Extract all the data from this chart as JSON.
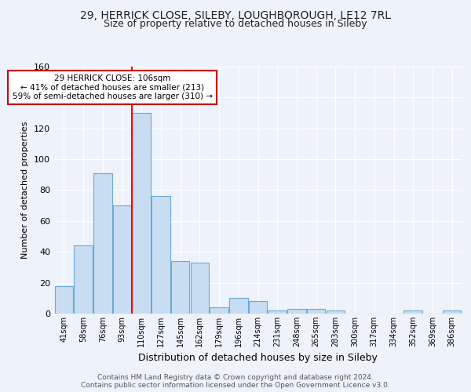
{
  "title1": "29, HERRICK CLOSE, SILEBY, LOUGHBOROUGH, LE12 7RL",
  "title2": "Size of property relative to detached houses in Sileby",
  "xlabel": "Distribution of detached houses by size in Sileby",
  "ylabel": "Number of detached properties",
  "categories": [
    "41sqm",
    "58sqm",
    "76sqm",
    "93sqm",
    "110sqm",
    "127sqm",
    "145sqm",
    "162sqm",
    "179sqm",
    "196sqm",
    "214sqm",
    "231sqm",
    "248sqm",
    "265sqm",
    "283sqm",
    "300sqm",
    "317sqm",
    "334sqm",
    "352sqm",
    "369sqm",
    "386sqm"
  ],
  "values": [
    18,
    44,
    91,
    70,
    130,
    76,
    34,
    33,
    4,
    10,
    8,
    2,
    3,
    3,
    2,
    0,
    0,
    0,
    2,
    0,
    2
  ],
  "bar_color": "#c9ddf2",
  "bar_edge_color": "#6aaad4",
  "red_line_x": 4,
  "annotation_text": "29 HERRICK CLOSE: 106sqm\n← 41% of detached houses are smaller (213)\n59% of semi-detached houses are larger (310) →",
  "annotation_box_color": "#ffffff",
  "annotation_box_edge": "#cc0000",
  "ylim": [
    0,
    160
  ],
  "yticks": [
    0,
    20,
    40,
    60,
    80,
    100,
    120,
    140,
    160
  ],
  "footer1": "Contains HM Land Registry data © Crown copyright and database right 2024.",
  "footer2": "Contains public sector information licensed under the Open Government Licence v3.0.",
  "bg_color": "#eef2fb",
  "plot_bg_color": "#eef2fb",
  "grid_color": "#ffffff",
  "title1_fontsize": 10,
  "title2_fontsize": 9
}
